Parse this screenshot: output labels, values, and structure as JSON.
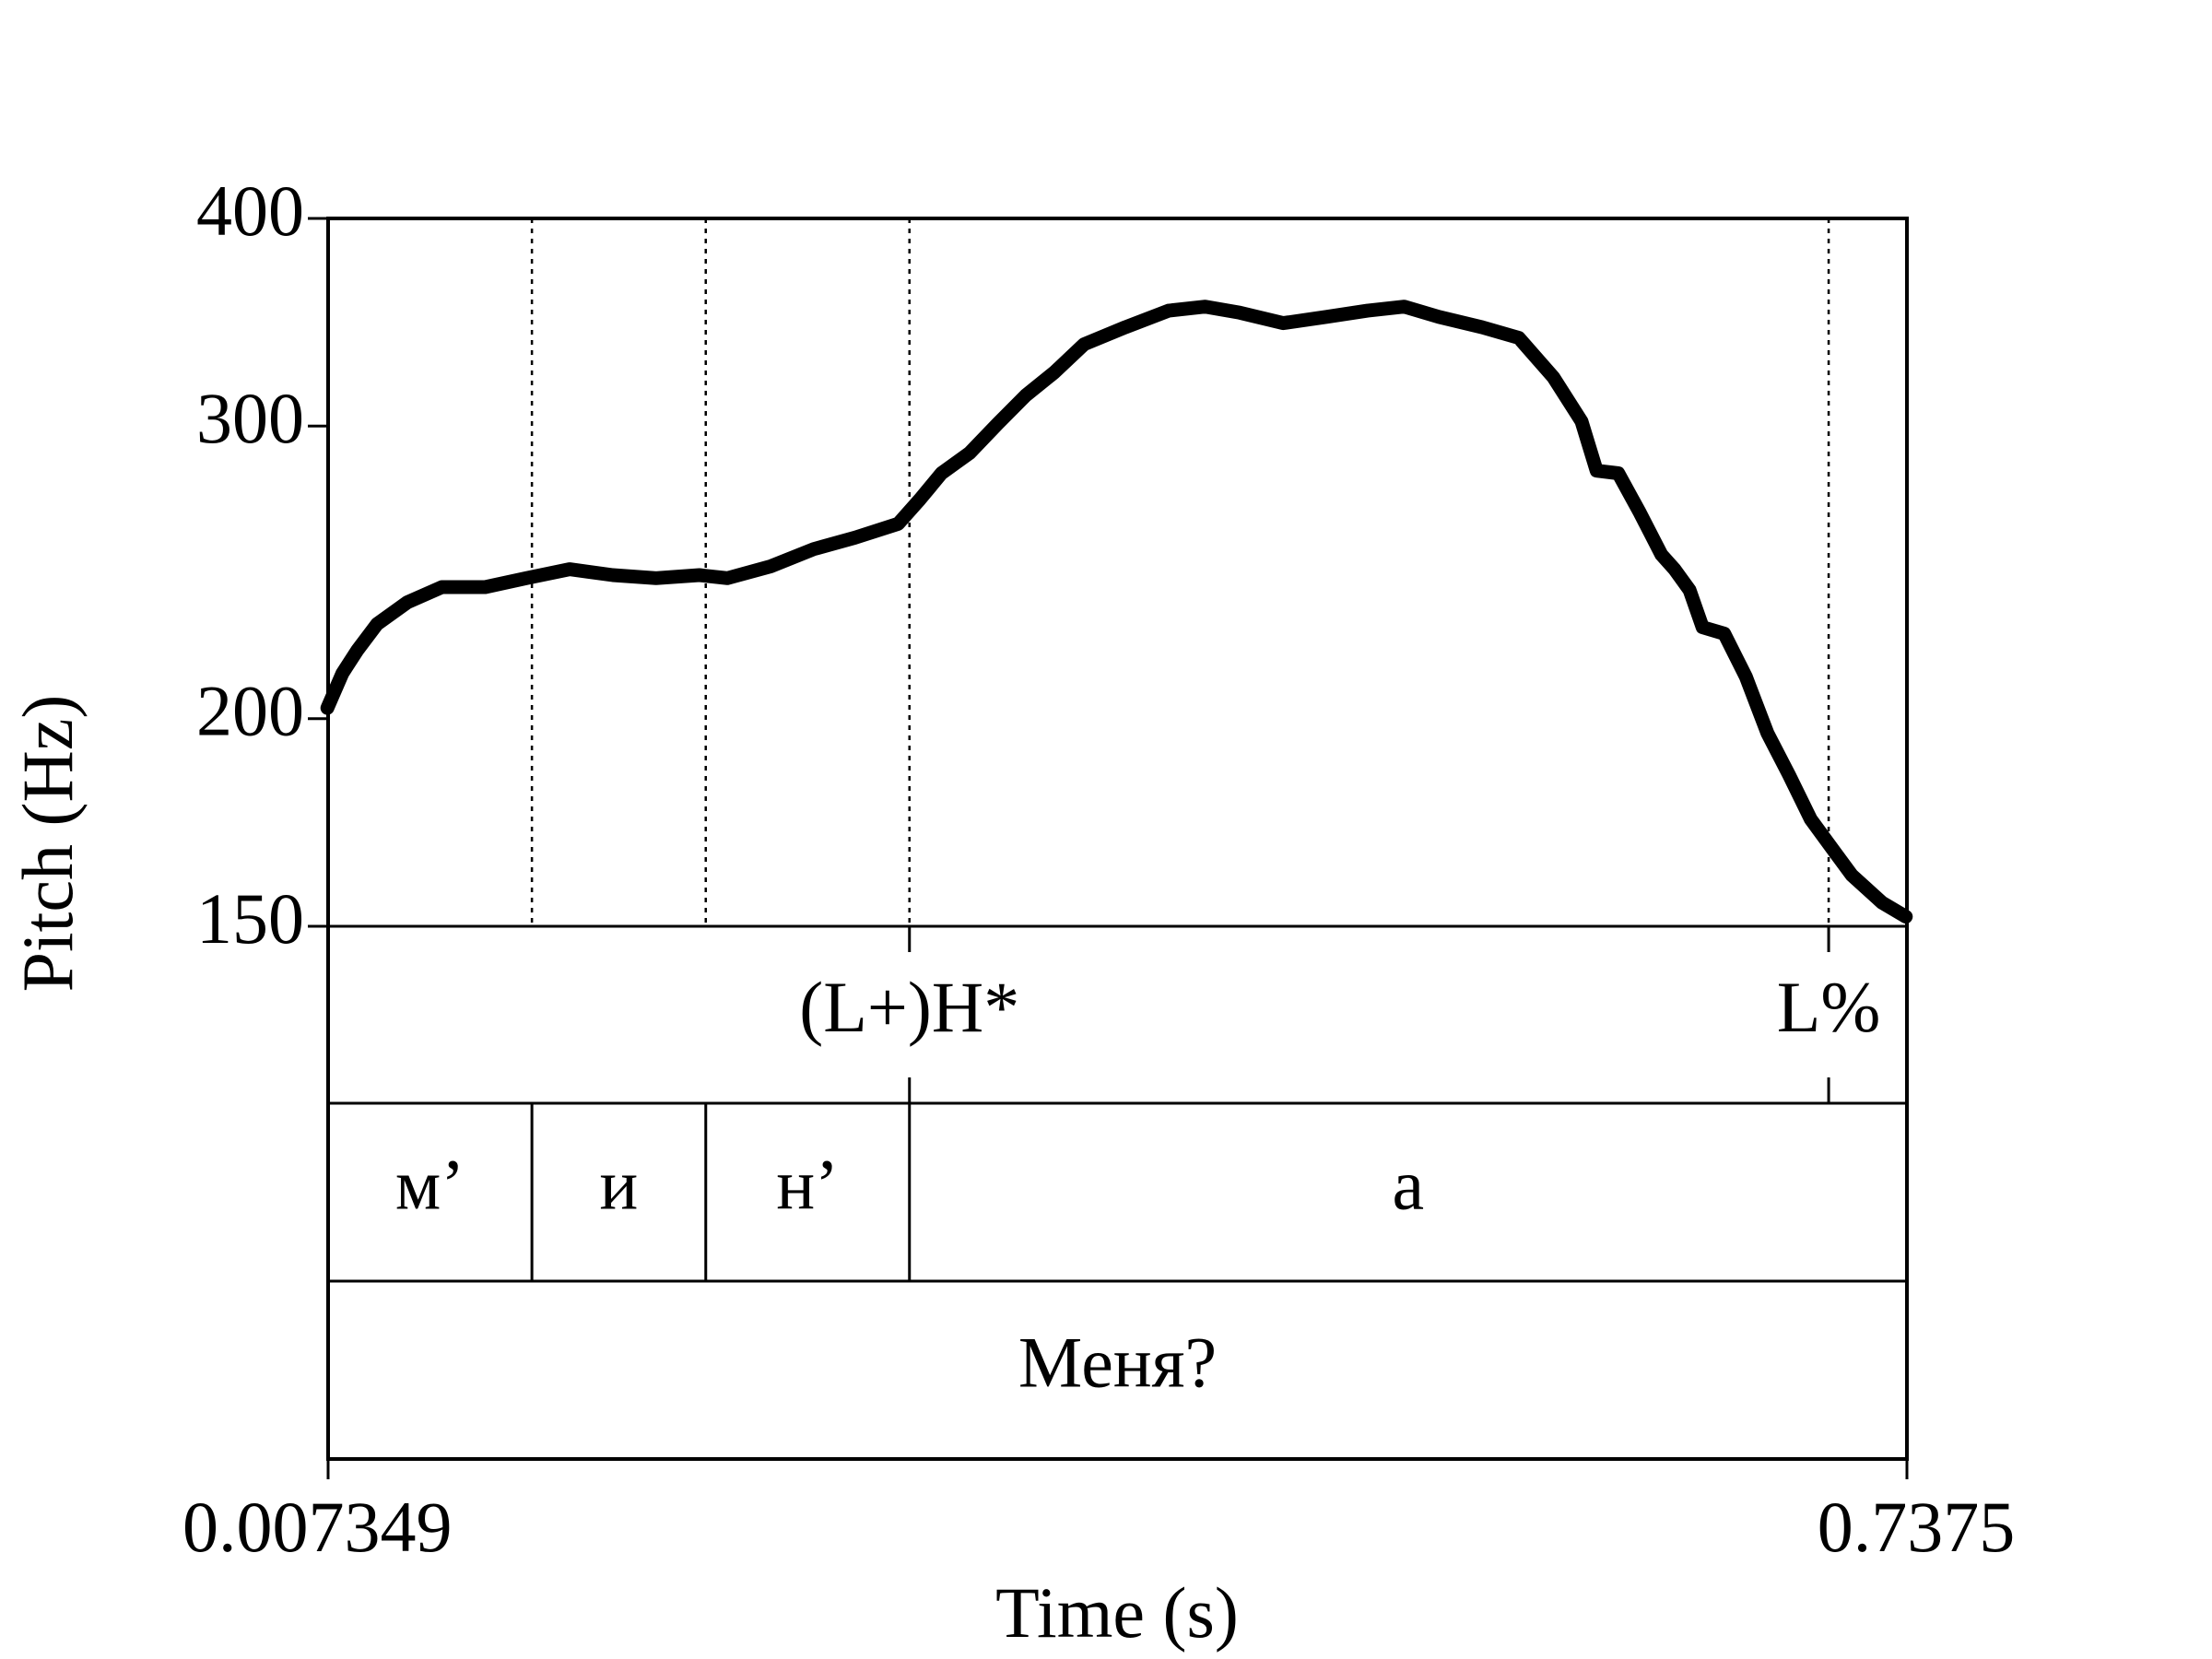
{
  "chart_data": {
    "type": "line",
    "y_label": "Pitch (Hz)",
    "x_label": "Time (s)",
    "xlim": [
      0.007349,
      0.7375
    ],
    "xticks": [
      0.007349,
      0.7375
    ],
    "ylim": [
      150,
      400
    ],
    "yticks": [
      150,
      200,
      300,
      400
    ],
    "y_scale": "log",
    "color": "#000000",
    "x": [
      0.007,
      0.014,
      0.021,
      0.03,
      0.044,
      0.06,
      0.08,
      0.099,
      0.119,
      0.139,
      0.159,
      0.179,
      0.192,
      0.212,
      0.232,
      0.251,
      0.271,
      0.281,
      0.291,
      0.304,
      0.317,
      0.33,
      0.343,
      0.357,
      0.376,
      0.396,
      0.413,
      0.429,
      0.449,
      0.469,
      0.488,
      0.505,
      0.521,
      0.541,
      0.558,
      0.574,
      0.587,
      0.594,
      0.604,
      0.614,
      0.624,
      0.63,
      0.637,
      0.643,
      0.653,
      0.663,
      0.673,
      0.683,
      0.693,
      0.703,
      0.712,
      0.726,
      0.737
    ],
    "values": [
      203,
      213,
      220,
      228,
      235,
      240,
      240,
      243,
      246,
      244,
      243,
      244,
      243,
      247,
      253,
      257,
      262,
      271,
      281,
      289,
      301,
      313,
      323,
      336,
      344,
      352,
      354,
      351,
      346,
      349,
      352,
      354,
      349,
      344,
      339,
      321,
      302,
      282,
      281,
      266,
      251,
      246,
      239,
      227,
      225,
      212,
      196,
      185,
      174,
      167,
      161,
      155,
      152
    ],
    "tone_tier": {
      "points": [
        {
          "time": 0.2762,
          "label": "(L+)H*"
        },
        {
          "time": 0.7013,
          "label": "L%"
        }
      ]
    },
    "segment_tier": {
      "boundaries": [
        0.1016,
        0.182,
        0.2762
      ],
      "labels": [
        "м’",
        "и",
        "н’",
        "а"
      ]
    },
    "word_tier": {
      "labels": [
        "Меня?"
      ]
    }
  }
}
